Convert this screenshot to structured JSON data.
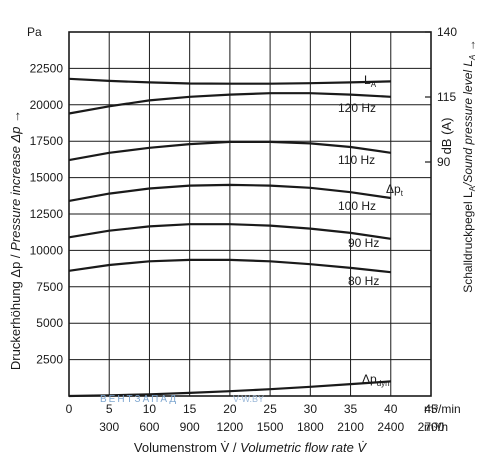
{
  "chart_data": {
    "type": "line",
    "x_axis": {
      "min": 0,
      "max": 45,
      "step": 5,
      "primary_ticks": [
        "0",
        "5",
        "10",
        "15",
        "20",
        "25",
        "30",
        "35",
        "40",
        "45"
      ],
      "primary_unit": "m³/min",
      "secondary_ticks": [
        "300",
        "600",
        "900",
        "1200",
        "1500",
        "1800",
        "2100",
        "2400",
        "2700"
      ],
      "secondary_unit": "m³/h",
      "label_plain": "Volumenstrom V̇ / ",
      "label_italic": "Volumetric flow rate V̇"
    },
    "y_left": {
      "unit": "Pa",
      "min": 0,
      "max": 25000,
      "ticks": [
        2500,
        5000,
        7500,
        10000,
        12500,
        15000,
        17500,
        20000,
        22500
      ],
      "tick_labels": [
        "2500",
        "5000",
        "7500",
        "10000",
        "12500",
        "15000",
        "17500",
        "20000",
        "22500"
      ],
      "label_plain": "Druckerhöhung Δp / ",
      "label_italic": "Pressure increase Δp →"
    },
    "y_right": {
      "unit": "dB (A)",
      "min": 0,
      "max": 140,
      "ticks": [
        90,
        115,
        140
      ],
      "tick_labels": [
        "90",
        "115",
        "140"
      ],
      "label_plain": "Schalldruckpegel L",
      "label_sub": "A",
      "label_italic": "/Sound pressure level L",
      "label_italic_sub": "A",
      "label_arrow": " →"
    },
    "series": [
      {
        "label": "120 Hz",
        "x": [
          0,
          5,
          10,
          15,
          20,
          25,
          30,
          35,
          40
        ],
        "y": [
          19400,
          19900,
          20300,
          20550,
          20700,
          20800,
          20800,
          20700,
          20550
        ]
      },
      {
        "label": "110 Hz",
        "x": [
          0,
          5,
          10,
          15,
          20,
          25,
          30,
          35,
          40
        ],
        "y": [
          16200,
          16700,
          17050,
          17300,
          17450,
          17450,
          17350,
          17100,
          16700
        ]
      },
      {
        "label": "100 Hz",
        "x": [
          0,
          5,
          10,
          15,
          20,
          25,
          30,
          35,
          40
        ],
        "y": [
          13400,
          13900,
          14250,
          14450,
          14500,
          14450,
          14300,
          14000,
          13600
        ]
      },
      {
        "label": "90 Hz",
        "x": [
          0,
          5,
          10,
          15,
          20,
          25,
          30,
          35,
          40
        ],
        "y": [
          10900,
          11350,
          11650,
          11800,
          11800,
          11700,
          11500,
          11200,
          10800
        ]
      },
      {
        "label": "80 Hz",
        "x": [
          0,
          5,
          10,
          15,
          20,
          25,
          30,
          35,
          40
        ],
        "y": [
          8600,
          9000,
          9250,
          9350,
          9350,
          9250,
          9050,
          8800,
          8500
        ]
      },
      {
        "label": "L",
        "label_sub": "A",
        "axis": "right",
        "x": [
          0,
          5,
          10,
          15,
          20,
          25,
          30,
          35,
          40
        ],
        "y": [
          122,
          121.2,
          120.6,
          120.2,
          120.1,
          120.1,
          120.3,
          120.6,
          121
        ]
      },
      {
        "label": "Δp",
        "label_sub": "dyn",
        "x": [
          0,
          5,
          10,
          15,
          20,
          25,
          30,
          35,
          40
        ],
        "y": [
          0,
          50,
          120,
          210,
          330,
          470,
          630,
          820,
          1000
        ]
      }
    ],
    "annotations": [
      {
        "label": "Δp",
        "label_sub": "t"
      }
    ],
    "grid": true
  },
  "watermark": {
    "text": "ВЕНТЗАПАД",
    "text2": "V-W.BY"
  }
}
